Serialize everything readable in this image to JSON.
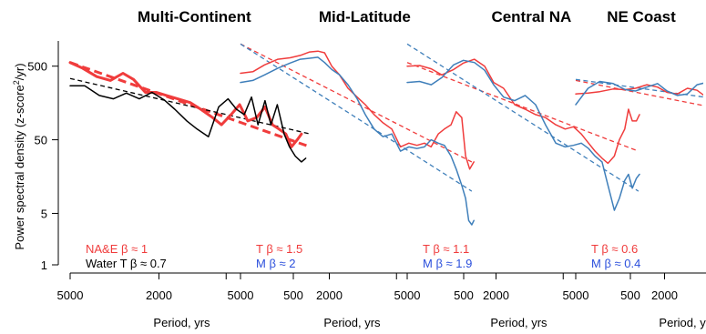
{
  "chart_data": {
    "type": "line",
    "ylabel": "Power spectral density (z-score",
    "ylabel_sup": "2",
    "ylabel_tail": "/yr)",
    "xlabel": "Period, yrs",
    "x_ticks": [
      5000,
      2000,
      1000,
      500
    ],
    "x_tick_labels": [
      "5000",
      "2000",
      "",
      "500"
    ],
    "y_ticks": [
      1,
      5,
      50,
      500
    ],
    "y_tick_labels": [
      "1",
      "5",
      "50",
      "500"
    ],
    "x_scale": "log (reversed)",
    "y_scale": "log",
    "xlim": [
      5000,
      400
    ],
    "ylim": [
      1,
      1100
    ],
    "colors": {
      "T": "#f03c3c",
      "M": "#3f7fba",
      "Water": "#000000",
      "label_blue": "#2b4fdc"
    },
    "panels": [
      {
        "title": "Multi-Continent",
        "labels": [
          {
            "text": "NA&E β ≈ 1",
            "color": "#f03c3c"
          },
          {
            "text": "Water T β  ≈ 0.7",
            "color": "#000000"
          }
        ],
        "series": [
          {
            "key": "T",
            "thick": true,
            "x": [
              5000,
              4400,
              3800,
              3300,
              2900,
              2600,
              2300,
              2050,
              1850,
              1650,
              1450,
              1300,
              1150,
              1050,
              950,
              870,
              800,
              730,
              670,
              620,
              580,
              540,
              510,
              480,
              460
            ],
            "y": [
              560,
              470,
              360,
              320,
              400,
              330,
              220,
              220,
              200,
              180,
              160,
              130,
              100,
              80,
              110,
              150,
              90,
              100,
              140,
              80,
              70,
              60,
              40,
              50,
              60
            ]
          },
          {
            "key": "Water",
            "x": [
              5000,
              4300,
              3700,
              3200,
              2800,
              2450,
              2150,
              1900,
              1700,
              1500,
              1350,
              1200,
              1080,
              980,
              900,
              830,
              770,
              720,
              670,
              630,
              590,
              550,
              520,
              490,
              460,
              440
            ],
            "y": [
              270,
              270,
              200,
              180,
              215,
              180,
              220,
              175,
              130,
              90,
              70,
              55,
              140,
              180,
              130,
              110,
              190,
              80,
              170,
              80,
              150,
              60,
              40,
              30,
              25,
              28
            ]
          }
        ],
        "fits": [
          {
            "key": "T",
            "dashed": true,
            "thick": true,
            "beta": 1,
            "x": [
              5000,
              420
            ],
            "y": [
              560,
              40
            ]
          },
          {
            "key": "Water",
            "dashed": true,
            "beta": 0.7,
            "x": [
              5000,
              420
            ],
            "y": [
              340,
              60
            ]
          }
        ]
      },
      {
        "title": "Mid-Latitude",
        "labels": [
          {
            "text": "T β ≈ 1.5",
            "color": "#f03c3c"
          },
          {
            "text": "M β  ≈ 2",
            "color": "#2b4fdc"
          }
        ],
        "series": [
          {
            "key": "T",
            "x": [
              5000,
              4400,
              3900,
              3400,
              3000,
              2700,
              2450,
              2250,
              2100,
              1950,
              1800,
              1650,
              1500,
              1380,
              1260,
              1150,
              1050,
              960,
              880,
              810,
              750,
              700,
              650,
              610,
              570,
              540,
              510,
              490,
              470,
              450
            ],
            "y": [
              400,
              420,
              520,
              620,
              650,
              700,
              780,
              800,
              760,
              500,
              380,
              250,
              190,
              150,
              110,
              85,
              70,
              40,
              45,
              42,
              45,
              40,
              60,
              70,
              80,
              120,
              100,
              30,
              20,
              25
            ]
          },
          {
            "key": "M",
            "x": [
              5000,
              4400,
              3900,
              3400,
              3000,
              2700,
              2450,
              2250,
              2100,
              1950,
              1800,
              1650,
              1500,
              1380,
              1260,
              1150,
              1050,
              960,
              880,
              810,
              750,
              700,
              650,
              610,
              570,
              540,
              510,
              490,
              475,
              460,
              450
            ],
            "y": [
              300,
              320,
              380,
              470,
              550,
              620,
              640,
              660,
              560,
              450,
              380,
              280,
              180,
              110,
              70,
              55,
              60,
              35,
              40,
              38,
              40,
              50,
              45,
              42,
              30,
              20,
              12,
              8,
              4,
              3.5,
              4
            ]
          }
        ],
        "fits": [
          {
            "key": "T",
            "dashed": true,
            "beta": 1.5,
            "x": [
              5000,
              460
            ],
            "y": [
              1000,
              25
            ]
          },
          {
            "key": "M",
            "dashed": true,
            "beta": 2,
            "x": [
              5000,
              460
            ],
            "y": [
              1000,
              10
            ]
          }
        ]
      },
      {
        "title": "Central NA",
        "labels": [
          {
            "text": "T β ≈ 1.1",
            "color": "#f03c3c"
          },
          {
            "text": "M β  ≈ 1.9",
            "color": "#2b4fdc"
          }
        ],
        "series": [
          {
            "key": "T",
            "x": [
              5000,
              4400,
              3900,
              3500,
              3100,
              2800,
              2500,
              2250,
              2050,
              1850,
              1650,
              1480,
              1330,
              1200,
              1080,
              980,
              900,
              830,
              770,
              720,
              670,
              630,
              590,
              560,
              530,
              510,
              490,
              470,
              455
            ],
            "y": [
              500,
              510,
              460,
              380,
              450,
              550,
              620,
              500,
              300,
              250,
              150,
              130,
              110,
              100,
              80,
              70,
              75,
              60,
              45,
              35,
              28,
              24,
              30,
              50,
              70,
              130,
              90,
              90,
              110
            ]
          },
          {
            "key": "M",
            "x": [
              5000,
              4400,
              3900,
              3500,
              3100,
              2800,
              2500,
              2250,
              2050,
              1850,
              1650,
              1480,
              1330,
              1200,
              1080,
              980,
              900,
              830,
              770,
              720,
              670,
              630,
              590,
              560,
              530,
              510,
              490,
              470,
              455
            ],
            "y": [
              300,
              310,
              280,
              350,
              520,
              600,
              560,
              440,
              280,
              190,
              170,
              200,
              150,
              80,
              45,
              40,
              42,
              45,
              38,
              30,
              25,
              12,
              5.5,
              8,
              14,
              17,
              11,
              15,
              17
            ]
          }
        ],
        "fits": [
          {
            "key": "T",
            "dashed": true,
            "beta": 1.1,
            "x": [
              5000,
              460
            ],
            "y": [
              560,
              35
            ]
          },
          {
            "key": "M",
            "dashed": true,
            "beta": 1.9,
            "x": [
              5000,
              460
            ],
            "y": [
              1000,
              10
            ]
          }
        ]
      },
      {
        "title": "NE Coast",
        "labels": [
          {
            "text": "T β ≈ 0.6",
            "color": "#f03c3c"
          },
          {
            "text": "M β  ≈ 0.4",
            "color": "#2b4fdc"
          }
        ],
        "series": [
          {
            "key": "T",
            "x": [
              5000,
              4400,
              3900,
              3400,
              3000,
              2700,
              2400,
              2150,
              1950,
              1750,
              1580,
              1430,
              1300,
              1180,
              1070,
              980,
              900,
              830,
              770,
              720,
              670,
              630,
              590,
              560,
              530,
              500,
              480,
              460,
              445
            ],
            "y": [
              210,
              215,
              225,
              245,
              240,
              250,
              280,
              260,
              220,
              210,
              250,
              235,
              190,
              150,
              120,
              125,
              125,
              80,
              100,
              95,
              115,
              95,
              80,
              75,
              60,
              40,
              20,
              10,
              45
            ]
          },
          {
            "key": "M",
            "x": [
              5000,
              4400,
              3900,
              3400,
              3000,
              2700,
              2400,
              2150,
              1950,
              1750,
              1580,
              1430,
              1300,
              1180,
              1070,
              980,
              900,
              830,
              770,
              720,
              690,
              670,
              650,
              630,
              590,
              550,
              520,
              500,
              480,
              460,
              445
            ],
            "y": [
              150,
              250,
              310,
              290,
              240,
              230,
              260,
              290,
              230,
              200,
              210,
              280,
              300,
              250,
              220,
              180,
              130,
              70,
              55,
              110,
              200,
              30,
              15,
              60,
              170,
              260,
              170,
              110,
              60,
              60,
              80
            ]
          }
        ],
        "fits": [
          {
            "key": "T",
            "dashed": true,
            "beta": 0.6,
            "x": [
              5000,
              440
            ],
            "y": [
              320,
              75
            ]
          },
          {
            "key": "M",
            "dashed": true,
            "beta": 0.4,
            "x": [
              5000,
              440
            ],
            "y": [
              330,
              120
            ]
          }
        ]
      }
    ]
  }
}
